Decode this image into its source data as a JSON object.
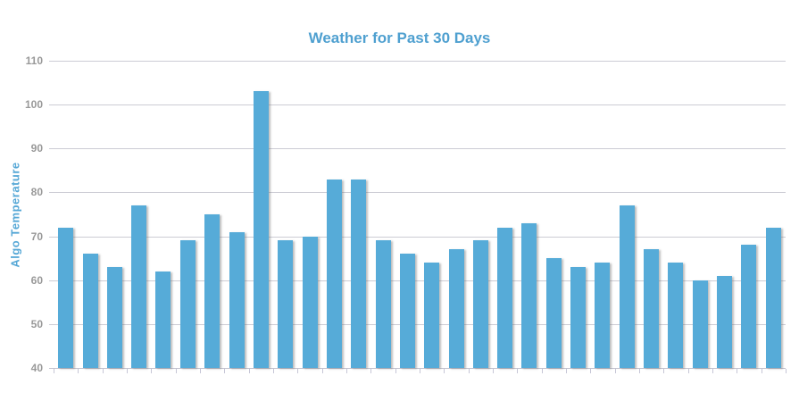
{
  "chart_data": {
    "type": "bar",
    "title": "Weather for Past 30 Days",
    "ylabel": "Algo Temperature",
    "xlabel": "",
    "values": [
      72,
      66,
      63,
      77,
      62,
      69,
      75,
      71,
      103,
      69,
      70,
      83,
      83,
      69,
      66,
      64,
      67,
      69,
      72,
      73,
      65,
      63,
      64,
      77,
      67,
      64,
      60,
      61,
      68,
      72
    ],
    "ylim": [
      40,
      110
    ],
    "ytick_step": 10,
    "ytick_labels": [
      "40",
      "50",
      "60",
      "70",
      "80",
      "90",
      "100",
      "110"
    ],
    "x_tick_labels_visible": false,
    "grid": "horizontal",
    "legend": "none",
    "colors": {
      "bar_fill": "#56abd8",
      "title_text": "#4fa0d0",
      "ylabel_text": "#55a7d6",
      "tick_label_text": "#999999",
      "gridline": "#ccccd4",
      "background": "#ffffff"
    }
  }
}
